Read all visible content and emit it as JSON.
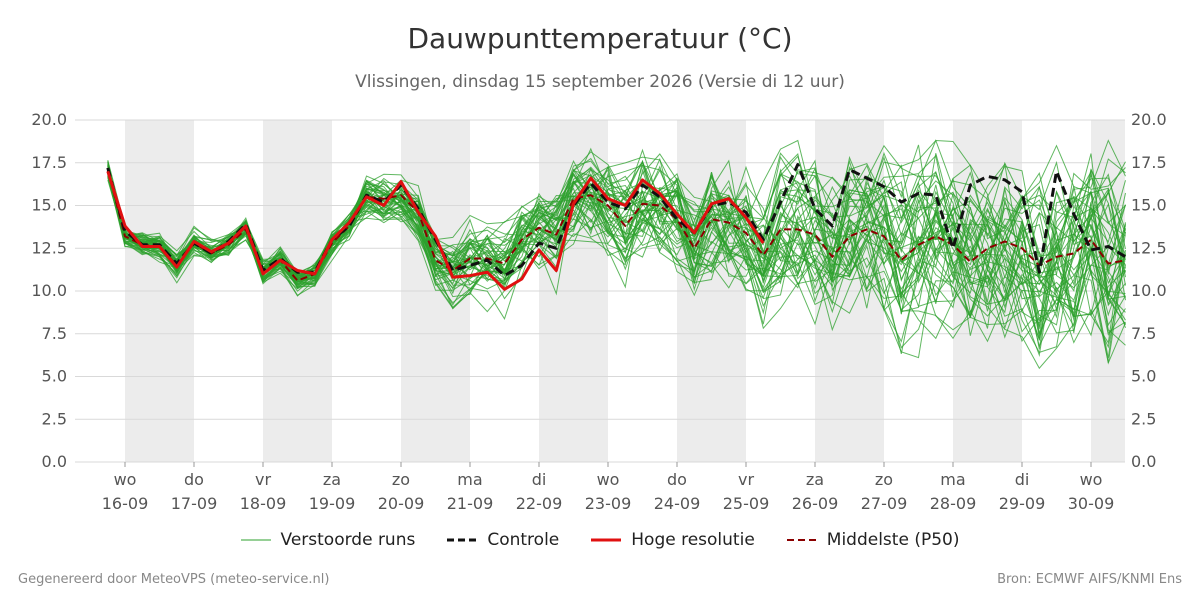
{
  "title": "Dauwpunttemperatuur (°C)",
  "subtitle": "Vlissingen, dinsdag 15 september 2026 (Versie di 12 uur)",
  "footer": {
    "left": "Gegenereerd door MeteoVPS (meteo-service.nl)",
    "right": "Bron: ECMWF AIFS/KNMI Ens"
  },
  "legend": [
    {
      "label": "Verstoorde runs",
      "style": "ensemble"
    },
    {
      "label": "Controle",
      "style": "control"
    },
    {
      "label": "Hoge resolutie",
      "style": "hires"
    },
    {
      "label": "Middelste (P50)",
      "style": "median"
    }
  ],
  "colors": {
    "ensemble": "#2ca02c",
    "control": "#111111",
    "hires": "#e01010",
    "median": "#8b0000",
    "weekend_band": "#ececec",
    "grid": "#d9d9d9",
    "axis_text": "#555555"
  },
  "chart_data": {
    "type": "line",
    "title": "Dauwpunttemperatuur (°C)",
    "ylim": [
      0,
      20
    ],
    "yticks": [
      "0.0",
      "2.5",
      "5.0",
      "7.5",
      "10.0",
      "12.5",
      "15.0",
      "17.5",
      "20.0"
    ],
    "x_unit": "days since 16-09 00:00",
    "xlim": [
      -0.25,
      14.5
    ],
    "day_labels": [
      {
        "weekday": "wo",
        "date": "16-09"
      },
      {
        "weekday": "do",
        "date": "17-09"
      },
      {
        "weekday": "vr",
        "date": "18-09"
      },
      {
        "weekday": "za",
        "date": "19-09"
      },
      {
        "weekday": "zo",
        "date": "20-09"
      },
      {
        "weekday": "ma",
        "date": "21-09"
      },
      {
        "weekday": "di",
        "date": "22-09"
      },
      {
        "weekday": "wo",
        "date": "23-09"
      },
      {
        "weekday": "do",
        "date": "24-09"
      },
      {
        "weekday": "vr",
        "date": "25-09"
      },
      {
        "weekday": "za",
        "date": "26-09"
      },
      {
        "weekday": "zo",
        "date": "27-09"
      },
      {
        "weekday": "ma",
        "date": "28-09"
      },
      {
        "weekday": "di",
        "date": "29-09"
      },
      {
        "weekday": "wo",
        "date": "30-09"
      }
    ],
    "shaded_days": [
      0,
      2,
      4,
      6,
      8,
      10,
      12,
      14
    ],
    "ensemble_members": 50,
    "series": [
      {
        "name": "Hoge resolutie",
        "style": "hires",
        "x": [
          -0.25,
          0,
          0.25,
          0.5,
          0.75,
          1,
          1.25,
          1.5,
          1.75,
          2,
          2.25,
          2.5,
          2.75,
          3,
          3.25,
          3.5,
          3.75,
          4,
          4.25,
          4.5,
          4.75,
          5,
          5.25,
          5.5,
          5.75,
          6,
          6.25,
          6.5,
          6.75,
          7,
          7.25,
          7.5,
          7.75,
          8,
          8.25,
          8.5,
          8.75,
          9,
          9.25
        ],
        "values": [
          17.0,
          13.8,
          12.6,
          12.6,
          11.4,
          12.9,
          12.3,
          12.8,
          13.8,
          11.0,
          11.8,
          11.2,
          11.0,
          13.0,
          14.0,
          15.5,
          15.0,
          16.4,
          14.6,
          13.2,
          10.8,
          10.9,
          11.1,
          10.1,
          10.7,
          12.4,
          11.2,
          15.1,
          16.6,
          15.4,
          15.0,
          16.5,
          15.7,
          14.5,
          13.4,
          15.1,
          15.4,
          14.3,
          12.8
        ]
      },
      {
        "name": "Controle",
        "style": "control",
        "x": [
          -0.25,
          0,
          0.25,
          0.5,
          0.75,
          1,
          1.25,
          1.5,
          1.75,
          2,
          2.25,
          2.5,
          2.75,
          3,
          3.25,
          3.5,
          3.75,
          4,
          4.25,
          4.5,
          4.75,
          5,
          5.25,
          5.5,
          5.75,
          6,
          6.25,
          6.5,
          6.75,
          7,
          7.25,
          7.5,
          7.75,
          8,
          8.25,
          8.5,
          8.75,
          9,
          9.25,
          9.5,
          9.75,
          10,
          10.25,
          10.5,
          10.75,
          11,
          11.25,
          11.5,
          11.75,
          12,
          12.25,
          12.5,
          12.75,
          13,
          13.25,
          13.5,
          13.75,
          14,
          14.25,
          14.5
        ],
        "values": [
          17.2,
          13.5,
          12.7,
          12.7,
          11.6,
          12.8,
          12.2,
          12.9,
          13.9,
          11.2,
          11.9,
          11.1,
          11.1,
          13.0,
          13.8,
          15.6,
          15.2,
          16.2,
          14.8,
          13.0,
          11.2,
          11.5,
          11.8,
          10.9,
          11.5,
          12.8,
          12.5,
          15.0,
          16.3,
          15.2,
          14.8,
          16.2,
          15.5,
          14.2,
          13.4,
          15.0,
          15.2,
          14.6,
          13.0,
          15.2,
          17.4,
          14.8,
          13.8,
          17.1,
          16.6,
          16.1,
          15.2,
          15.7,
          15.6,
          12.5,
          16.2,
          16.7,
          16.5,
          15.8,
          11.1,
          17.0,
          14.5,
          12.4,
          12.6,
          12.0
        ]
      },
      {
        "name": "Middelste (P50)",
        "style": "median",
        "x": [
          -0.25,
          0,
          0.25,
          0.5,
          0.75,
          1,
          1.25,
          1.5,
          1.75,
          2,
          2.25,
          2.5,
          2.75,
          3,
          3.25,
          3.5,
          3.75,
          4,
          4.25,
          4.5,
          4.75,
          5,
          5.25,
          5.5,
          5.75,
          6,
          6.25,
          6.5,
          6.75,
          7,
          7.25,
          7.5,
          7.75,
          8,
          8.25,
          8.5,
          8.75,
          9,
          9.25,
          9.5,
          9.75,
          10,
          10.25,
          10.5,
          10.75,
          11,
          11.25,
          11.5,
          11.75,
          12,
          12.25,
          12.5,
          12.75,
          13,
          13.25,
          13.5,
          13.75,
          14,
          14.25,
          14.5
        ],
        "values": [
          17.1,
          13.2,
          12.7,
          12.6,
          11.5,
          12.8,
          12.2,
          12.7,
          13.6,
          11.1,
          11.8,
          10.6,
          11.0,
          12.8,
          13.8,
          15.5,
          15.4,
          15.6,
          14.6,
          11.8,
          11.2,
          11.9,
          11.9,
          11.6,
          13.0,
          13.7,
          13.3,
          15.4,
          15.6,
          15.0,
          13.8,
          15.1,
          15.0,
          14.2,
          12.5,
          14.2,
          14.0,
          13.4,
          12.1,
          13.6,
          13.6,
          13.3,
          12.0,
          13.2,
          13.6,
          13.2,
          11.8,
          12.7,
          13.2,
          12.7,
          11.7,
          12.5,
          12.9,
          12.5,
          11.5,
          12.0,
          12.2,
          13.0,
          11.6,
          11.8
        ]
      }
    ]
  }
}
